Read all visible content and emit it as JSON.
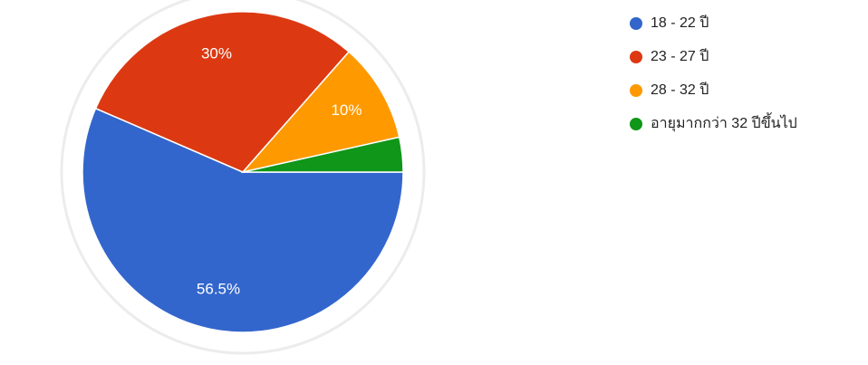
{
  "chart_data": {
    "type": "pie",
    "categories": [
      "18 - 22 ปี",
      "23 - 27 ปี",
      "28 - 32 ปี",
      "อายุมากกว่า 32 ปีขึ้นไป"
    ],
    "values": [
      56.5,
      30,
      10,
      3.5
    ],
    "value_labels": [
      "56.5%",
      "30%",
      "10%",
      null
    ],
    "colors": [
      "#3366cc",
      "#dc3912",
      "#ff9900",
      "#109618"
    ],
    "legend": "right"
  }
}
